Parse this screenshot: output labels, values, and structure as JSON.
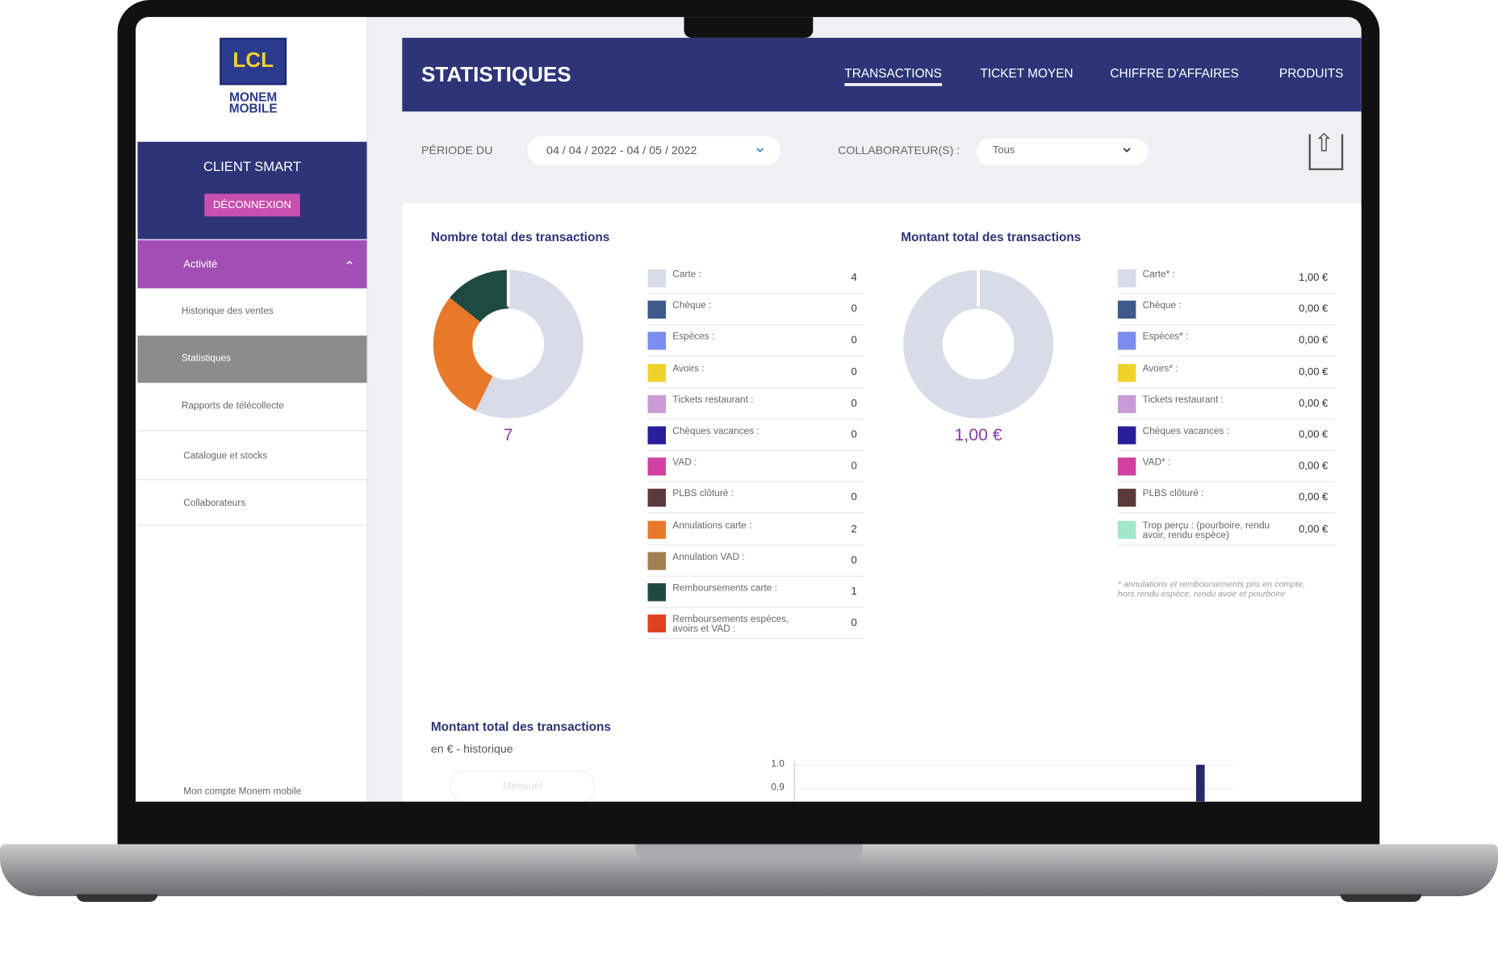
{
  "sidebar": {
    "logo": "LCL",
    "brand": "MONEM MOBILE",
    "client": "CLIENT SMART",
    "logout": "DÉCONNEXION",
    "section": "Activité",
    "items": [
      "Historique des ventes",
      "Statistiques",
      "Rapports de télécollecte"
    ],
    "catalogue": "Catalogue et stocks",
    "collaborators": "Collaborateurs",
    "account": "Mon compte Monem mobile"
  },
  "header": {
    "title": "STATISTIQUES",
    "tabs": [
      "TRANSACTIONS",
      "TICKET MOYEN",
      "CHIFFRE D'AFFAIRES",
      "PRODUITS"
    ]
  },
  "filters": {
    "period_label": "PÉRIODE DU",
    "period": "04 / 04 / 2022 - 04 / 05 / 2022",
    "collab_label": "COLLABORATEUR(S) :",
    "collab": "Tous"
  },
  "transactions_count": {
    "title": "Nombre total des transactions",
    "total": 7,
    "rows": [
      {
        "label": "Carte :",
        "color": "#d8dbe8",
        "value": 4
      },
      {
        "label": "Chèque :",
        "color": "#3d5a8a",
        "value": 0
      },
      {
        "label": "Espèces :",
        "color": "#7b8ef0",
        "value": 0
      },
      {
        "label": "Avoirs :",
        "color": "#f0d32a",
        "value": 0
      },
      {
        "label": "Tickets restaurant :",
        "color": "#c89bd6",
        "value": 0
      },
      {
        "label": "Chèques vacances :",
        "color": "#2a1f9a",
        "value": 0
      },
      {
        "label": "VAD :",
        "color": "#d040a0",
        "value": 0
      },
      {
        "label": "PLBS clôturé :",
        "color": "#5a3a3a",
        "value": 0
      },
      {
        "label": "Annulations carte :",
        "color": "#e8792a",
        "value": 2
      },
      {
        "label": "Annulation VAD :",
        "color": "#a08050",
        "value": 0
      },
      {
        "label": "Remboursements carte :",
        "color": "#1f4a42",
        "value": 1
      },
      {
        "label": "Remboursements espèces, avoirs et VAD :",
        "color": "#e04020",
        "value": 0
      }
    ]
  },
  "transactions_amount": {
    "title": "Montant total des transactions",
    "total": {
      "value": 1,
      "label": "1,00 €"
    },
    "rows": [
      {
        "label": "Carte* :",
        "color": "#d8dbe8",
        "amount": {
          "value": 1,
          "label": "1,00 €"
        }
      },
      {
        "label": "Chèque :",
        "color": "#3d5a8a",
        "amount": {
          "value": 0,
          "label": "0,00 €"
        }
      },
      {
        "label": "Espèces* :",
        "color": "#7b8ef0",
        "amount": {
          "value": 0,
          "label": "0,00 €"
        }
      },
      {
        "label": "Avoirs* :",
        "color": "#f0d32a",
        "amount": {
          "value": 0,
          "label": "0,00 €"
        }
      },
      {
        "label": "Tickets restaurant :",
        "color": "#c89bd6",
        "amount": {
          "value": 0,
          "label": "0,00 €"
        }
      },
      {
        "label": "Chèques vacances :",
        "color": "#2a1f9a",
        "amount": {
          "value": 0,
          "label": "0,00 €"
        }
      },
      {
        "label": "VAD* :",
        "color": "#d040a0",
        "amount": {
          "value": 0,
          "label": "0,00 €"
        }
      },
      {
        "label": "PLBS clôturé :",
        "color": "#5a3a3a",
        "amount": {
          "value": 0,
          "label": "0,00 €"
        }
      },
      {
        "label": "Trop perçu : (pourboire, rendu avoir, rendu espèce)",
        "color": "#a0e8c8",
        "amount": {
          "value": 0,
          "label": "0,00 €"
        }
      }
    ],
    "note": "* annulations et remboursements pris en compte, hors rendu espèce, rendu avoir et pourboire"
  },
  "history": {
    "title": "Montant total des transactions",
    "subtitle": "en € - historique",
    "toggle": "Mensuel",
    "ylim": [
      0,
      1
    ],
    "yticks": [
      {
        "value": 1,
        "label": "1.0"
      },
      {
        "value": 0.9,
        "label": "0.9"
      }
    ],
    "values": [
      1
    ],
    "color": "#262a6b"
  }
}
